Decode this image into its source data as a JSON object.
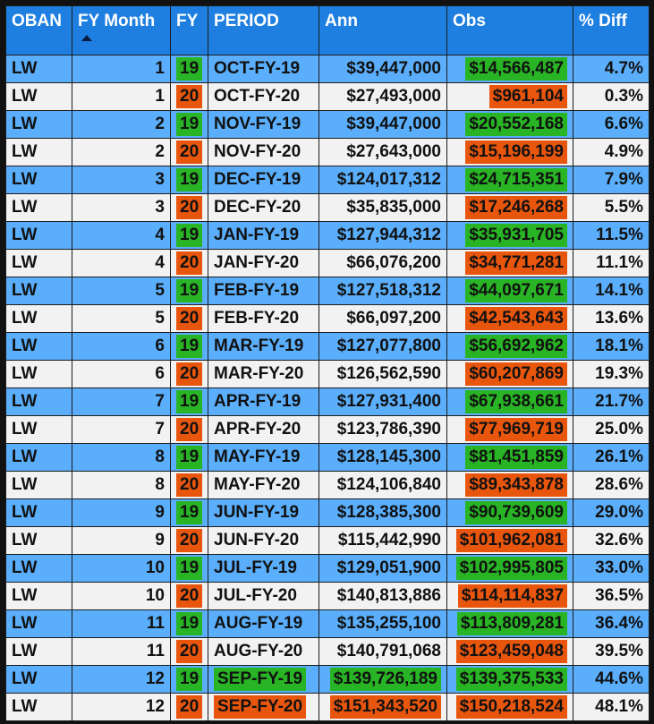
{
  "headers": {
    "oban": "OBAN",
    "fy_month": "FY Month",
    "fy": "FY",
    "period": "PERIOD",
    "ann": "Ann",
    "obs": "Obs",
    "pct_diff": "% Diff"
  },
  "colors": {
    "header_bg": "#1e7fe0",
    "row_blue": "#5aaefb",
    "row_white": "#f2f2f2",
    "highlight_green": "#28b424",
    "highlight_orange": "#e8560e"
  },
  "rows": [
    {
      "oban": "LW",
      "fy_month": "1",
      "fy": "19",
      "period": "OCT-FY-19",
      "ann": "$39,447,000",
      "obs": "$14,566,487",
      "pct_diff": "4.7%"
    },
    {
      "oban": "LW",
      "fy_month": "1",
      "fy": "20",
      "period": "OCT-FY-20",
      "ann": "$27,493,000",
      "obs": "$961,104",
      "pct_diff": "0.3%"
    },
    {
      "oban": "LW",
      "fy_month": "2",
      "fy": "19",
      "period": "NOV-FY-19",
      "ann": "$39,447,000",
      "obs": "$20,552,168",
      "pct_diff": "6.6%"
    },
    {
      "oban": "LW",
      "fy_month": "2",
      "fy": "20",
      "period": "NOV-FY-20",
      "ann": "$27,643,000",
      "obs": "$15,196,199",
      "pct_diff": "4.9%"
    },
    {
      "oban": "LW",
      "fy_month": "3",
      "fy": "19",
      "period": "DEC-FY-19",
      "ann": "$124,017,312",
      "obs": "$24,715,351",
      "pct_diff": "7.9%"
    },
    {
      "oban": "LW",
      "fy_month": "3",
      "fy": "20",
      "period": "DEC-FY-20",
      "ann": "$35,835,000",
      "obs": "$17,246,268",
      "pct_diff": "5.5%"
    },
    {
      "oban": "LW",
      "fy_month": "4",
      "fy": "19",
      "period": "JAN-FY-19",
      "ann": "$127,944,312",
      "obs": "$35,931,705",
      "pct_diff": "11.5%"
    },
    {
      "oban": "LW",
      "fy_month": "4",
      "fy": "20",
      "period": "JAN-FY-20",
      "ann": "$66,076,200",
      "obs": "$34,771,281",
      "pct_diff": "11.1%"
    },
    {
      "oban": "LW",
      "fy_month": "5",
      "fy": "19",
      "period": "FEB-FY-19",
      "ann": "$127,518,312",
      "obs": "$44,097,671",
      "pct_diff": "14.1%"
    },
    {
      "oban": "LW",
      "fy_month": "5",
      "fy": "20",
      "period": "FEB-FY-20",
      "ann": "$66,097,200",
      "obs": "$42,543,643",
      "pct_diff": "13.6%"
    },
    {
      "oban": "LW",
      "fy_month": "6",
      "fy": "19",
      "period": "MAR-FY-19",
      "ann": "$127,077,800",
      "obs": "$56,692,962",
      "pct_diff": "18.1%"
    },
    {
      "oban": "LW",
      "fy_month": "6",
      "fy": "20",
      "period": "MAR-FY-20",
      "ann": "$126,562,590",
      "obs": "$60,207,869",
      "pct_diff": "19.3%"
    },
    {
      "oban": "LW",
      "fy_month": "7",
      "fy": "19",
      "period": "APR-FY-19",
      "ann": "$127,931,400",
      "obs": "$67,938,661",
      "pct_diff": "21.7%"
    },
    {
      "oban": "LW",
      "fy_month": "7",
      "fy": "20",
      "period": "APR-FY-20",
      "ann": "$123,786,390",
      "obs": "$77,969,719",
      "pct_diff": "25.0%"
    },
    {
      "oban": "LW",
      "fy_month": "8",
      "fy": "19",
      "period": "MAY-FY-19",
      "ann": "$128,145,300",
      "obs": "$81,451,859",
      "pct_diff": "26.1%"
    },
    {
      "oban": "LW",
      "fy_month": "8",
      "fy": "20",
      "period": "MAY-FY-20",
      "ann": "$124,106,840",
      "obs": "$89,343,878",
      "pct_diff": "28.6%"
    },
    {
      "oban": "LW",
      "fy_month": "9",
      "fy": "19",
      "period": "JUN-FY-19",
      "ann": "$128,385,300",
      "obs": "$90,739,609",
      "pct_diff": "29.0%"
    },
    {
      "oban": "LW",
      "fy_month": "9",
      "fy": "20",
      "period": "JUN-FY-20",
      "ann": "$115,442,990",
      "obs": "$101,962,081",
      "pct_diff": "32.6%"
    },
    {
      "oban": "LW",
      "fy_month": "10",
      "fy": "19",
      "period": "JUL-FY-19",
      "ann": "$129,051,900",
      "obs": "$102,995,805",
      "pct_diff": "33.0%"
    },
    {
      "oban": "LW",
      "fy_month": "10",
      "fy": "20",
      "period": "JUL-FY-20",
      "ann": "$140,813,886",
      "obs": "$114,114,837",
      "pct_diff": "36.5%"
    },
    {
      "oban": "LW",
      "fy_month": "11",
      "fy": "19",
      "period": "AUG-FY-19",
      "ann": "$135,255,100",
      "obs": "$113,809,281",
      "pct_diff": "36.4%"
    },
    {
      "oban": "LW",
      "fy_month": "11",
      "fy": "20",
      "period": "AUG-FY-20",
      "ann": "$140,791,068",
      "obs": "$123,459,048",
      "pct_diff": "39.5%"
    },
    {
      "oban": "LW",
      "fy_month": "12",
      "fy": "19",
      "period": "SEP-FY-19",
      "ann": "$139,726,189",
      "obs": "$139,375,533",
      "pct_diff": "44.6%"
    },
    {
      "oban": "LW",
      "fy_month": "12",
      "fy": "20",
      "period": "SEP-FY-20",
      "ann": "$151,343,520",
      "obs": "$150,218,524",
      "pct_diff": "48.1%"
    }
  ]
}
